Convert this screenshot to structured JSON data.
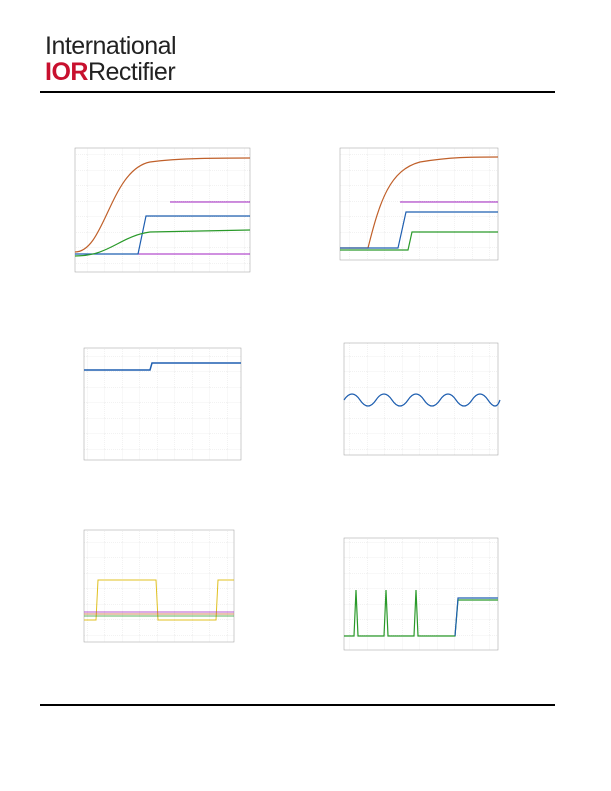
{
  "header": {
    "logo_line1": "International",
    "logo_mark": "IOR",
    "logo_line2": "Rectifier"
  }
}
